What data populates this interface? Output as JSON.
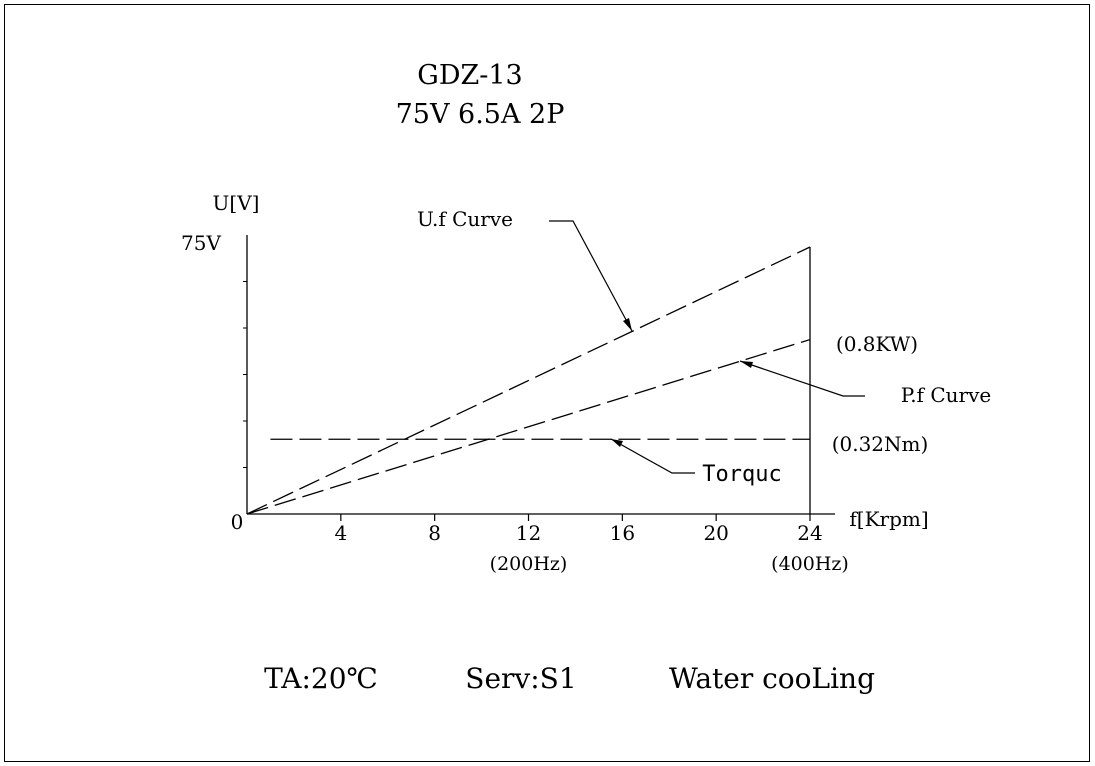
{
  "chart_data": {
    "type": "line",
    "title": "GDZ-13",
    "subtitle": "75V 6.5A 2P",
    "xlabel": "f[Krpm]",
    "ylabel": "U[V]",
    "origin_label": "0",
    "y_tick_label": "75V",
    "y_max": 75,
    "xlim": [
      0,
      24
    ],
    "x_ticks": [
      4,
      8,
      12,
      16,
      20,
      24
    ],
    "x_tick_labels": [
      "4",
      "8",
      "12",
      "16",
      "20",
      "24"
    ],
    "freq_labels": [
      {
        "x": 12,
        "text": "(200Hz)"
      },
      {
        "x": 24,
        "text": "(400Hz)"
      }
    ],
    "series": [
      {
        "name": "U.f Curve",
        "x": [
          0,
          24
        ],
        "y": [
          0,
          75
        ]
      },
      {
        "name": "P.f Curve",
        "x": [
          0,
          24
        ],
        "y": [
          0,
          49
        ]
      },
      {
        "name": "Torquc",
        "x": [
          1,
          24
        ],
        "y": [
          21,
          21
        ]
      }
    ],
    "annotations": {
      "power": "(0.8KW)",
      "torque": "(0.32Nm)"
    },
    "footer": {
      "ambient": "TA:20℃",
      "service": "Serv:S1",
      "cooling": "Water cooLing"
    }
  }
}
